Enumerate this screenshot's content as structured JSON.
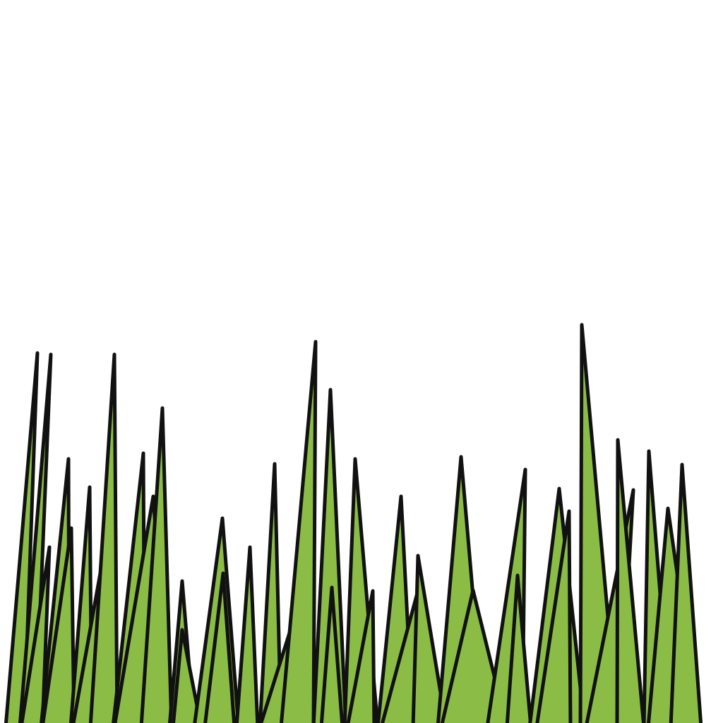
{
  "scene": {
    "subject": "grass-blades-illustration",
    "colors": {
      "background": "#ffffff",
      "blade_fill": "#8bbd46",
      "outline": "#111111"
    },
    "blade_count": 47
  }
}
